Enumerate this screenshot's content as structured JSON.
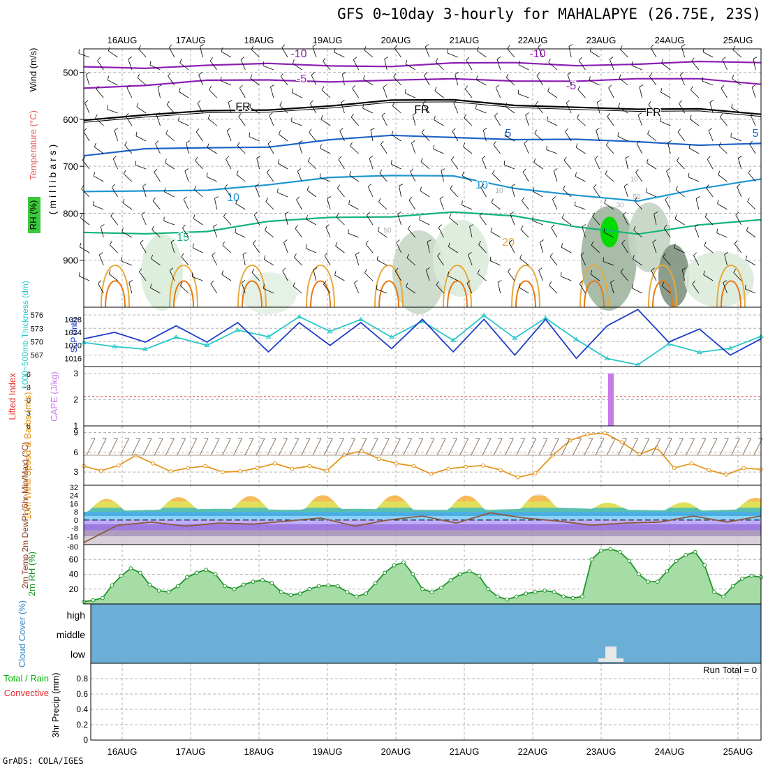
{
  "title": "GFS 0~10day 3-hourly for MAHALAPYE (26.75E, 23S)",
  "footer": "GrADS: COLA/IGES",
  "dates": [
    "16AUG",
    "17AUG",
    "18AUG",
    "19AUG",
    "20AUG",
    "21AUG",
    "22AUG",
    "23AUG",
    "24AUG",
    "25AUG"
  ],
  "colors": {
    "grid": "#b4b4b4",
    "frame": "#000000",
    "temp_contour_purple": "#8c1eb4",
    "temp_contour_blue": "#1e64c8",
    "temp_contour_cyan": "#1e96d2",
    "temp_contour_green": "#14b478",
    "temp_contour_orange": "#e6aa3c",
    "temp_contour_darkorange": "#e67814",
    "rh_green": "#00dc00",
    "thickness": "#28c8c8",
    "slp": "#1e3cc8",
    "cape": "#c87ae6",
    "lifted_index": "#e63232",
    "wind10m": "#e6961e",
    "barb": "#8c7864",
    "rh2m": "#1e9628",
    "cloud": "#6baed6",
    "precip_total": "#00b400",
    "precip_conv": "#e62828"
  },
  "chart_data": [
    {
      "type": "contour",
      "panel": "upper-air",
      "ylabel": "(millibars)",
      "side_labels": [
        "Wind (m/s)",
        "Temperature (°C)",
        "RH (%)"
      ],
      "yticks": [
        500,
        600,
        700,
        800,
        900
      ],
      "ylim": [
        1000,
        450
      ],
      "contour_labels": [
        "-10",
        "-10",
        "-5",
        "-5",
        "FR",
        "FR",
        "FR",
        "5",
        "5",
        "10",
        "10",
        "15",
        "20",
        "10",
        "30",
        "50",
        "50",
        "10"
      ],
      "isotherms": [
        {
          "label": "-10",
          "pressure": [
            488,
            487,
            486,
            485,
            484,
            484,
            483,
            482,
            482,
            481,
            481,
            480
          ]
        },
        {
          "label": "-5",
          "pressure": [
            530,
            526,
            521,
            517,
            516,
            517,
            518,
            517,
            515,
            516,
            517,
            522
          ]
        },
        {
          "label": "FR",
          "pressure": [
            598,
            593,
            585,
            577,
            569,
            563,
            560,
            566,
            574,
            583,
            577,
            585
          ]
        },
        {
          "label": "5",
          "pressure": [
            677,
            667,
            660,
            655,
            645,
            638,
            636,
            640,
            646,
            650,
            651,
            650
          ]
        },
        {
          "label": "10",
          "pressure": [
            757,
            755,
            747,
            738,
            728,
            720,
            716,
            748,
            766,
            772,
            744,
            730
          ]
        },
        {
          "label": "15",
          "pressure": [
            845,
            842,
            835,
            820,
            812,
            804,
            795,
            810,
            830,
            840,
            825,
            818
          ]
        }
      ],
      "rh_max": {
        "value": 70,
        "date": "23AUG",
        "pressure": 840
      }
    },
    {
      "type": "line",
      "panel": "thickness-slp",
      "series": [
        {
          "name": "1000~500mb Thickness (dm)",
          "axis": "left",
          "yticks": [
            567,
            570,
            573,
            576
          ],
          "values": [
            569.8,
            568.9,
            568.3,
            571.0,
            569.2,
            572.6,
            571.1,
            575.6,
            572.3,
            575.0,
            571.0,
            574.6,
            570.3,
            575.9,
            570.8,
            575.3,
            570.5,
            566.2,
            564.8,
            569.5,
            567.6,
            568.5,
            571.2
          ]
        },
        {
          "name": "SLP (mb)",
          "axis": "right",
          "yticks": [
            1016,
            1020,
            1024,
            1028
          ],
          "values": [
            1022.0,
            1024.0,
            1021.0,
            1026.0,
            1021.0,
            1027.0,
            1018.0,
            1027.0,
            1020.0,
            1027.0,
            1019.0,
            1028.0,
            1018.0,
            1028.0,
            1017.0,
            1028.0,
            1016.0,
            1026.0,
            1031.0,
            1021.0,
            1025.0,
            1017.0,
            1022.0
          ]
        }
      ]
    },
    {
      "type": "bar",
      "panel": "cape-li",
      "labels": [
        "Lifted Index",
        "CAPE (J/kg)"
      ],
      "left_yticks": [
        "-6",
        "-3",
        "0",
        "3",
        "6"
      ],
      "right_yticks": [
        1,
        2,
        3
      ],
      "cape_bar": {
        "date": "23AUG",
        "value": 3
      },
      "li_zero_line": 0
    },
    {
      "type": "line",
      "panel": "wind10m",
      "ylabel": "10m Wind Speed & Barbs (m/s)",
      "yticks": [
        3,
        6,
        9
      ],
      "values": [
        3.9,
        3.2,
        4.0,
        5.5,
        4.3,
        3.1,
        3.6,
        3.9,
        3.0,
        3.1,
        3.6,
        4.3,
        3.5,
        3.9,
        3.2,
        5.6,
        6.2,
        5.0,
        4.3,
        3.9,
        2.7,
        3.5,
        3.8,
        4.0,
        3.3,
        2.2,
        2.8,
        5.5,
        7.8,
        8.7,
        8.9,
        7.5,
        5.7,
        6.7,
        3.6,
        4.3,
        3.3,
        2.6,
        3.6,
        3.4
      ]
    },
    {
      "type": "area",
      "panel": "temp2m",
      "ylabel": "2m Temp 2m DewPt (6hr Min/Max) (°C)",
      "yticks": [
        -80,
        -16,
        -8,
        0,
        8,
        16,
        24,
        32
      ],
      "temp_max": [
        20,
        22,
        23,
        24,
        25,
        24,
        24,
        26,
        14,
        18,
        22
      ],
      "temp_min": [
        8,
        10,
        11,
        10,
        11,
        10,
        10,
        12,
        10,
        9,
        11
      ],
      "dewpoint": [
        -22,
        -5,
        -2,
        -6,
        -3,
        -4,
        -1,
        2,
        -6,
        0,
        4,
        -3,
        7,
        2,
        -1,
        -5,
        -3,
        -2,
        4,
        -2,
        4
      ]
    },
    {
      "type": "area",
      "panel": "rh2m",
      "ylabel": "2m RH (%)",
      "yticks": [
        20,
        40,
        60
      ],
      "values": [
        3,
        5,
        8,
        25,
        38,
        48,
        42,
        26,
        18,
        16,
        24,
        36,
        42,
        46,
        40,
        24,
        20,
        26,
        30,
        32,
        28,
        16,
        12,
        14,
        20,
        24,
        25,
        24,
        16,
        10,
        14,
        28,
        42,
        52,
        56,
        40,
        20,
        16,
        22,
        32,
        40,
        44,
        38,
        20,
        10,
        6,
        10,
        14,
        16,
        18,
        16,
        10,
        8,
        10,
        60,
        72,
        74,
        70,
        58,
        40,
        30,
        30,
        44,
        58,
        66,
        70,
        52,
        16,
        10,
        24,
        34,
        38,
        36
      ]
    },
    {
      "type": "bar",
      "panel": "cloud-cover",
      "ylabel": "Cloud Cover (%)",
      "levels": [
        "high",
        "middle",
        "low"
      ],
      "low_cloud_bump": {
        "date": "23AUG",
        "value": 20
      }
    },
    {
      "type": "bar",
      "panel": "precip",
      "ylabel": "3hr Precip (mm)",
      "legend": [
        "Total / Rain",
        "Convective"
      ],
      "yticks": [
        "0",
        "0.2",
        "0.4",
        "0.6",
        "0.8"
      ],
      "ylim": [
        0,
        1
      ],
      "run_total_label": "Run Total = 0",
      "values": []
    }
  ]
}
